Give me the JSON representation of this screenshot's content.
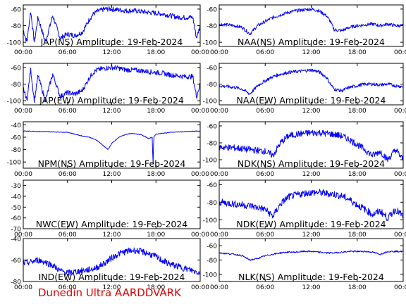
{
  "footer": {
    "label": "Dunedin Ultra AARDDVARK",
    "color": "#e00000"
  },
  "colors": {
    "trace": "#0000ff",
    "frame": "#000000",
    "background": "#ffffff"
  },
  "chart_data": [
    {
      "type": "line",
      "title": "JAP(NS) Amplitude: 19-Feb-2024",
      "xlabel": "",
      "ylabel": "",
      "xlim": [
        0,
        24
      ],
      "ylim": [
        -105,
        -55
      ],
      "x_tick_labels": [
        "00:00",
        "06:00",
        "12:00",
        "18:00",
        "00:00"
      ],
      "y_ticks": [
        -100,
        -80,
        -60
      ],
      "grid": false,
      "noise": 3,
      "series": [
        {
          "x": [
            0,
            0.5,
            1,
            1.5,
            2,
            3,
            4,
            5,
            6,
            7,
            8,
            8.5,
            9,
            9.5,
            10,
            11,
            12,
            13,
            14,
            15,
            16,
            17,
            18,
            19,
            20,
            21,
            22,
            23,
            23.5,
            24
          ],
          "values": [
            -85,
            -100,
            -62,
            -100,
            -70,
            -100,
            -68,
            -95,
            -90,
            -92,
            -88,
            -80,
            -72,
            -66,
            -63,
            -60,
            -60,
            -61,
            -62,
            -62,
            -63,
            -64,
            -65,
            -66,
            -68,
            -70,
            -70,
            -70,
            -95,
            -80
          ]
        }
      ]
    },
    {
      "type": "line",
      "title": "NAA(NS) Amplitude: 19-Feb-2024",
      "xlabel": "",
      "ylabel": "",
      "xlim": [
        0,
        24
      ],
      "ylim": [
        -105,
        -55
      ],
      "x_tick_labels": [
        "00:00",
        "06:00",
        "12:00",
        "18:00",
        "00:00"
      ],
      "y_ticks": [
        -100,
        -80,
        -60
      ],
      "grid": false,
      "noise": 2,
      "series": [
        {
          "x": [
            0,
            2,
            3,
            4,
            5,
            6,
            7,
            8,
            9,
            10,
            11,
            12,
            13,
            14,
            14.5,
            15,
            16,
            17,
            18,
            19,
            20,
            21,
            22,
            23,
            24
          ],
          "values": [
            -78,
            -80,
            -82,
            -90,
            -80,
            -75,
            -70,
            -67,
            -64,
            -62,
            -61,
            -60,
            -62,
            -68,
            -75,
            -85,
            -86,
            -82,
            -80,
            -79,
            -78,
            -80,
            -78,
            -80,
            -80
          ]
        }
      ]
    },
    {
      "type": "line",
      "title": "JAP(EW) Amplitude: 19-Feb-2024",
      "xlabel": "",
      "ylabel": "",
      "xlim": [
        0,
        24
      ],
      "ylim": [
        -105,
        -55
      ],
      "x_tick_labels": [
        "00:00",
        "06:00",
        "12:00",
        "18:00",
        "00:00"
      ],
      "y_ticks": [
        -100,
        -80,
        -60
      ],
      "grid": false,
      "noise": 3,
      "series": [
        {
          "x": [
            0,
            0.5,
            1,
            1.5,
            2,
            3,
            4,
            5,
            6,
            7,
            8,
            8.5,
            9,
            9.5,
            10,
            11,
            12,
            13,
            14,
            15,
            16,
            17,
            18,
            19,
            20,
            21,
            22,
            23,
            23.5,
            24
          ],
          "values": [
            -85,
            -100,
            -62,
            -100,
            -70,
            -100,
            -68,
            -95,
            -90,
            -92,
            -88,
            -80,
            -72,
            -66,
            -63,
            -61,
            -60,
            -61,
            -63,
            -63,
            -64,
            -65,
            -66,
            -67,
            -69,
            -70,
            -71,
            -71,
            -95,
            -80
          ]
        }
      ]
    },
    {
      "type": "line",
      "title": "NAA(EW) Amplitude: 19-Feb-2024",
      "xlabel": "",
      "ylabel": "",
      "xlim": [
        0,
        24
      ],
      "ylim": [
        -105,
        -55
      ],
      "x_tick_labels": [
        "00:00",
        "06:00",
        "12:00",
        "18:00",
        "00:00"
      ],
      "y_ticks": [
        -100,
        -80,
        -60
      ],
      "grid": false,
      "noise": 2,
      "series": [
        {
          "x": [
            0,
            2,
            3,
            4,
            5,
            6,
            7,
            8,
            9,
            10,
            11,
            12,
            13,
            14,
            14.5,
            15,
            16,
            17,
            18,
            19,
            20,
            21,
            22,
            23,
            24
          ],
          "values": [
            -82,
            -84,
            -86,
            -92,
            -82,
            -76,
            -71,
            -68,
            -66,
            -65,
            -64,
            -63,
            -65,
            -72,
            -80,
            -86,
            -88,
            -84,
            -82,
            -80,
            -80,
            -81,
            -80,
            -82,
            -83
          ]
        }
      ]
    },
    {
      "type": "line",
      "title": "NPM(NS) Amplitude: 19-Feb-2024",
      "xlabel": "",
      "ylabel": "",
      "xlim": [
        0,
        24
      ],
      "ylim": [
        -110,
        -35
      ],
      "x_tick_labels": [
        "00:00",
        "06:00",
        "12:00",
        "18:00",
        "00:00"
      ],
      "y_ticks": [
        -100,
        -80,
        -60,
        -40
      ],
      "grid": false,
      "noise": 0.5,
      "series": [
        {
          "x": [
            0,
            3,
            6,
            7,
            8,
            9,
            10,
            11,
            11.5,
            12,
            13,
            14,
            15,
            16,
            17,
            17.5,
            17.6,
            17.7,
            18,
            20,
            22,
            24
          ],
          "values": [
            -50,
            -51,
            -52,
            -55,
            -58,
            -60,
            -65,
            -75,
            -80,
            -70,
            -60,
            -55,
            -54,
            -56,
            -62,
            -60,
            -108,
            -60,
            -55,
            -52,
            -51,
            -50
          ]
        }
      ]
    },
    {
      "type": "line",
      "title": "NDK(NS) Amplitude: 19-Feb-2024",
      "xlabel": "",
      "ylabel": "",
      "xlim": [
        0,
        24
      ],
      "ylim": [
        -110,
        -55
      ],
      "x_tick_labels": [
        "00:00",
        "06:00",
        "12:00",
        "18:00",
        "00:00"
      ],
      "y_ticks": [
        -100,
        -80,
        -60
      ],
      "grid": false,
      "noise": 4,
      "series": [
        {
          "x": [
            0,
            2,
            4,
            6,
            7,
            8,
            9,
            10,
            11,
            12,
            13,
            14,
            15,
            16,
            17,
            18,
            19,
            20,
            21,
            22,
            23,
            24
          ],
          "values": [
            -85,
            -86,
            -88,
            -90,
            -95,
            -80,
            -72,
            -70,
            -69,
            -68,
            -68,
            -69,
            -70,
            -72,
            -76,
            -82,
            -88,
            -95,
            -90,
            -100,
            -88,
            -100
          ]
        }
      ]
    },
    {
      "type": "line",
      "title": "NWC(EW) Amplitude: 19-Feb-2024",
      "xlabel": "",
      "ylabel": "",
      "xlim": [
        0,
        24
      ],
      "ylim": [
        -70,
        -25
      ],
      "x_tick_labels": [
        "00:00",
        "06:00",
        "12:00",
        "18:00",
        "00:00"
      ],
      "y_ticks": [
        -70,
        -60,
        -50,
        -40,
        -30
      ],
      "grid": false,
      "noise": 0,
      "series": []
    },
    {
      "type": "line",
      "title": "NDK(EW) Amplitude: 19-Feb-2024",
      "xlabel": "",
      "ylabel": "",
      "xlim": [
        0,
        24
      ],
      "ylim": [
        -110,
        -55
      ],
      "x_tick_labels": [
        "00:00",
        "06:00",
        "12:00",
        "18:00",
        "00:00"
      ],
      "y_ticks": [
        -100,
        -80,
        -60
      ],
      "grid": false,
      "noise": 4,
      "series": [
        {
          "x": [
            0,
            2,
            4,
            6,
            7,
            8,
            9,
            10,
            11,
            12,
            13,
            14,
            15,
            16,
            17,
            18,
            19,
            20,
            21,
            22,
            23,
            24
          ],
          "values": [
            -80,
            -82,
            -84,
            -88,
            -96,
            -82,
            -74,
            -72,
            -70,
            -69,
            -69,
            -70,
            -71,
            -73,
            -77,
            -83,
            -88,
            -94,
            -90,
            -98,
            -88,
            -96
          ]
        }
      ]
    },
    {
      "type": "line",
      "title": "IND(EW) Amplitude: 19-Feb-2024",
      "xlabel": "",
      "ylabel": "",
      "xlim": [
        0,
        24
      ],
      "ylim": [
        -80,
        -40
      ],
      "x_tick_labels": [
        "00:00",
        "06:00",
        "12:00",
        "18:00",
        "00:00"
      ],
      "y_ticks": [
        -80,
        -60,
        -40
      ],
      "grid": false,
      "noise": 3,
      "series": [
        {
          "x": [
            0,
            1,
            2,
            3,
            4,
            5,
            6,
            7,
            8,
            9,
            10,
            11,
            12,
            13,
            14,
            15,
            16,
            17,
            18,
            19,
            20,
            21,
            22,
            23,
            24
          ],
          "values": [
            -63,
            -62,
            -60,
            -62,
            -65,
            -70,
            -72,
            -71,
            -70,
            -69,
            -67,
            -63,
            -58,
            -54,
            -52,
            -51,
            -52,
            -54,
            -57,
            -61,
            -64,
            -66,
            -68,
            -70,
            -72
          ]
        }
      ]
    },
    {
      "type": "line",
      "title": "NLK(NS) Amplitude: 19-Feb-2024",
      "xlabel": "",
      "ylabel": "",
      "xlim": [
        0,
        24
      ],
      "ylim": [
        -110,
        -50
      ],
      "x_tick_labels": [
        "00:00",
        "06:00",
        "12:00",
        "18:00",
        "00:00"
      ],
      "y_ticks": [
        -100,
        -80,
        -60
      ],
      "grid": false,
      "noise": 1,
      "series": [
        {
          "x": [
            0,
            1,
            2,
            3,
            4,
            5,
            6,
            7,
            8,
            9,
            10,
            11,
            12,
            13,
            14,
            15,
            16,
            17,
            18,
            19,
            20,
            21,
            22,
            24
          ],
          "values": [
            -70,
            -71,
            -72,
            -74,
            -80,
            -78,
            -74,
            -72,
            -70,
            -69,
            -69,
            -68,
            -68,
            -69,
            -70,
            -70,
            -69,
            -68,
            -68,
            -68,
            -69,
            -72,
            -68,
            -68
          ]
        }
      ]
    }
  ]
}
